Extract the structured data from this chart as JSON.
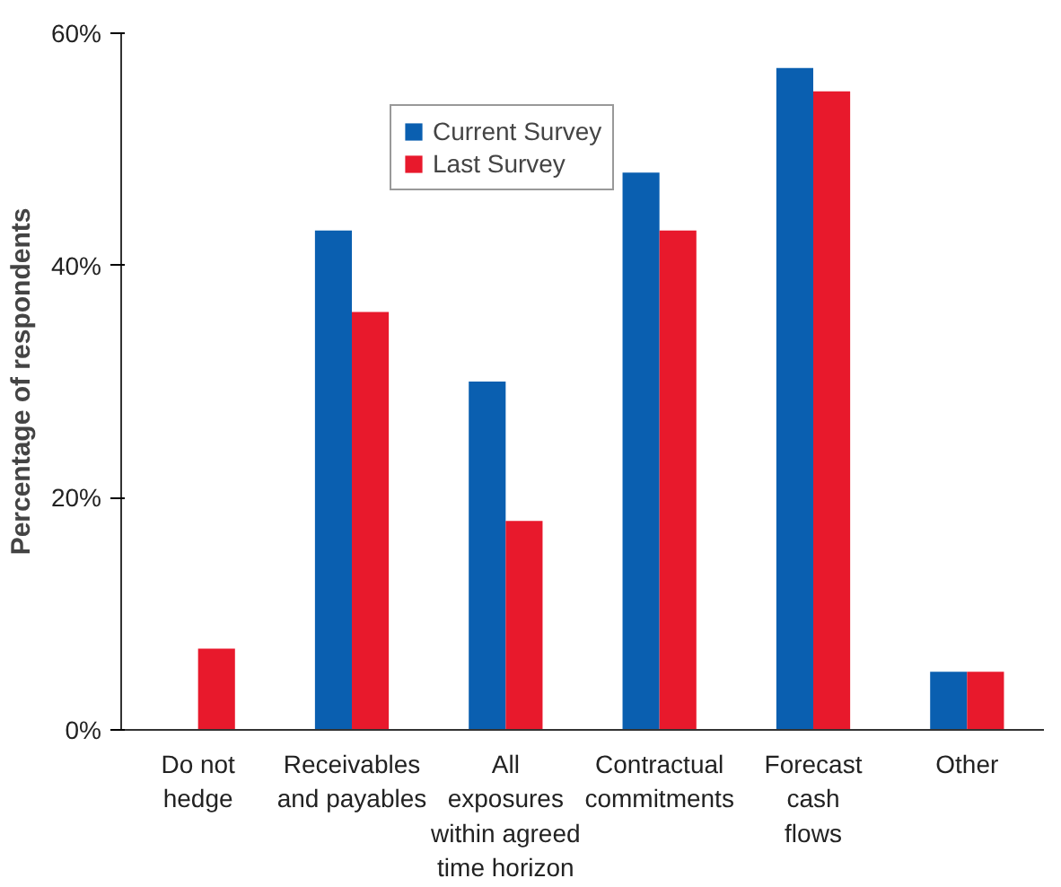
{
  "chart_data": {
    "type": "bar",
    "ylabel": "Percentage of respondents",
    "categories": [
      "Do not\nhedge",
      "Receivables\nand payables",
      "All\nexposures\nwithin agreed\ntime horizon",
      "Contractual\ncommitments",
      "Forecast\ncash\nflows",
      "Other"
    ],
    "series": [
      {
        "name": "Current Survey",
        "color": "#0a5fb0",
        "values": [
          0,
          43,
          30,
          48,
          57,
          5
        ]
      },
      {
        "name": "Last Survey",
        "color": "#e8192c",
        "values": [
          7,
          36,
          18,
          43,
          55,
          5
        ]
      }
    ],
    "ylim": [
      0,
      60
    ],
    "yticks": [
      {
        "value": 0,
        "label": "0%"
      },
      {
        "value": 20,
        "label": "20%"
      },
      {
        "value": 40,
        "label": "40%"
      },
      {
        "value": 60,
        "label": "60%"
      }
    ],
    "grid": false,
    "legend": "top left"
  }
}
